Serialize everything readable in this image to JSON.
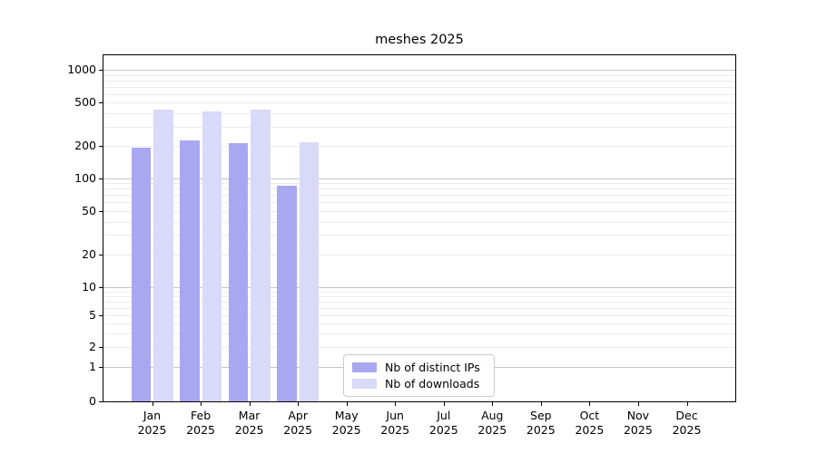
{
  "chart_data": {
    "type": "bar",
    "title": "meshes 2025",
    "yscale": "symlog",
    "grid": "horizontal",
    "ylim": [
      0,
      1400
    ],
    "yticks": [
      0,
      1,
      2,
      5,
      10,
      20,
      50,
      100,
      200,
      500,
      1000
    ],
    "categories": [
      [
        "Jan",
        "2025"
      ],
      [
        "Feb",
        "2025"
      ],
      [
        "Mar",
        "2025"
      ],
      [
        "Apr",
        "2025"
      ],
      [
        "May",
        "2025"
      ],
      [
        "Jun",
        "2025"
      ],
      [
        "Jul",
        "2025"
      ],
      [
        "Aug",
        "2025"
      ],
      [
        "Sep",
        "2025"
      ],
      [
        "Oct",
        "2025"
      ],
      [
        "Nov",
        "2025"
      ],
      [
        "Dec",
        "2025"
      ]
    ],
    "series": [
      {
        "name": "Nb of distinct IPs",
        "color": "#a8a8f0",
        "values": [
          192,
          225,
          212,
          86,
          null,
          null,
          null,
          null,
          null,
          null,
          null,
          null
        ]
      },
      {
        "name": "Nb of downloads",
        "color": "#d9d9f8",
        "values": [
          430,
          410,
          430,
          215,
          null,
          null,
          null,
          null,
          null,
          null,
          null,
          null
        ]
      }
    ],
    "legend_position": "lower center",
    "colors": {
      "major_grid": "#c4c4c4",
      "minor_grid": "#ececec",
      "axis": "#000000",
      "background": "#ffffff"
    }
  }
}
